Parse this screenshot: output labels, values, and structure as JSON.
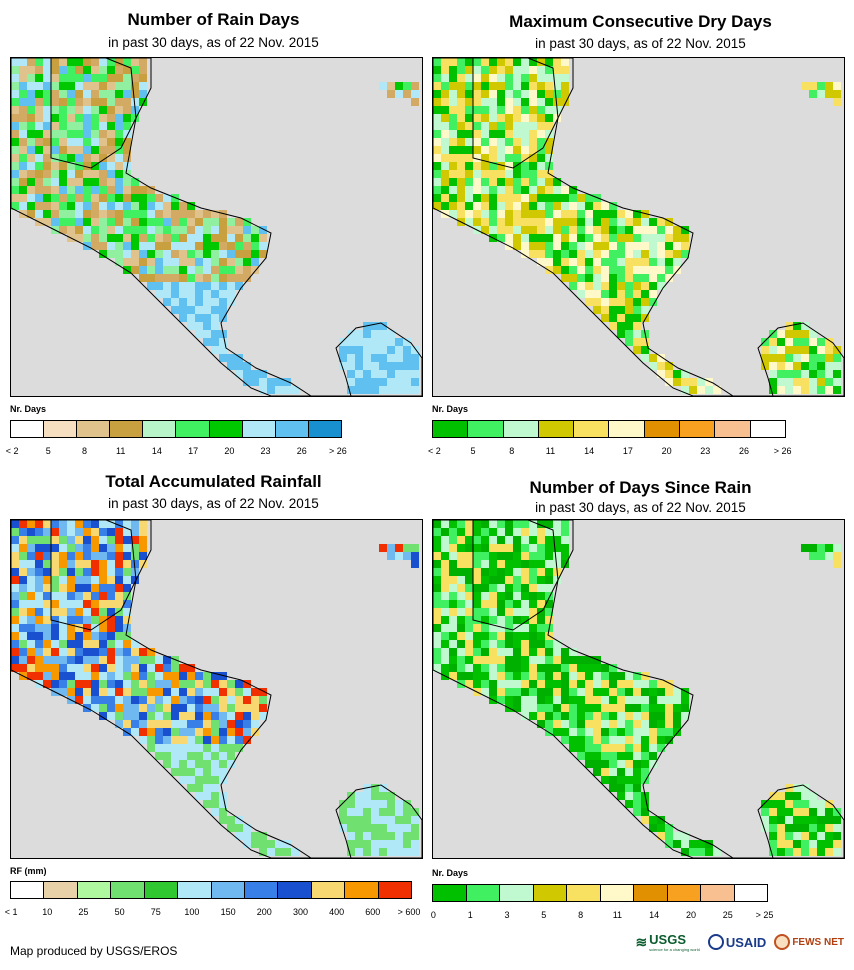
{
  "panels": [
    {
      "title": "Number of Rain Days",
      "subtitle": "in past 30 days, as of 22 Nov. 2015",
      "legend_title": "Nr. Days",
      "legend_colors": [
        "#ffffff",
        "#f5dfc0",
        "#e0c28c",
        "#c8a040",
        "#b8f5c8",
        "#40f060",
        "#00c800",
        "#b0e8f8",
        "#60c0f0",
        "#1890d0"
      ],
      "legend_ticks": [
        "< 2",
        "5",
        "8",
        "11",
        "14",
        "17",
        "20",
        "23",
        "26",
        "> 26"
      ],
      "map_palette": [
        "#d2aa64",
        "#c8a040",
        "#e0c28c",
        "#40f060",
        "#00c800",
        "#90f0a0",
        "#60c0f0",
        "#b0e8f8"
      ],
      "map_icon": "rain-days-map"
    },
    {
      "title": "Maximum Consecutive Dry Days",
      "subtitle": "in past 30 days, as of 22 Nov. 2015",
      "legend_title": "Nr. Days",
      "legend_colors": [
        "#00c000",
        "#40f060",
        "#c0f8d0",
        "#d0c800",
        "#f8e060",
        "#fff8c8",
        "#e09000",
        "#f8a020",
        "#f8c090",
        "#ffffff"
      ],
      "legend_ticks": [
        "< 2",
        "5",
        "8",
        "11",
        "14",
        "17",
        "20",
        "23",
        "26",
        "> 26"
      ],
      "map_palette": [
        "#40f060",
        "#00c000",
        "#c0f8d0",
        "#d0c800",
        "#f8e060",
        "#fff8c8"
      ],
      "map_icon": "dry-days-map"
    },
    {
      "title": "Total Accumulated Rainfall",
      "subtitle": "in past 30 days, as of 22 Nov. 2015",
      "legend_title": "RF (mm)",
      "legend_colors": [
        "#ffffff",
        "#e8d0a8",
        "#b0f8a0",
        "#70e070",
        "#30c830",
        "#b0e8f8",
        "#70b8f0",
        "#3880e8",
        "#1850d0",
        "#f8d870",
        "#f89800",
        "#f03000"
      ],
      "legend_ticks": [
        "< 1",
        "10",
        "25",
        "50",
        "75",
        "100",
        "150",
        "200",
        "300",
        "400",
        "600",
        "> 600"
      ],
      "map_palette": [
        "#3880e8",
        "#70b8f0",
        "#1850d0",
        "#f89800",
        "#f8d870",
        "#f03000",
        "#70e070",
        "#b0e8f8"
      ],
      "map_icon": "rainfall-map"
    },
    {
      "title": "Number of Days Since Rain",
      "subtitle": "in past 30 days, as of 22 Nov. 2015",
      "legend_title": "Nr. Days",
      "legend_colors": [
        "#00c000",
        "#40f060",
        "#c0f8d0",
        "#d0c800",
        "#f8e060",
        "#fff8c8",
        "#e09000",
        "#f8a020",
        "#f8c090",
        "#ffffff"
      ],
      "legend_ticks": [
        "0",
        "1",
        "3",
        "5",
        "8",
        "11",
        "14",
        "20",
        "25",
        "> 25"
      ],
      "map_palette": [
        "#00c000",
        "#40f060",
        "#00b000",
        "#c0f8d0",
        "#f8e060"
      ],
      "map_icon": "days-since-rain-map"
    }
  ],
  "credit": "Map produced by USGS/EROS",
  "logos": {
    "usgs": "USGS",
    "usgs_tagline": "science for a changing world",
    "usaid": "USAID",
    "fewsnet": "FEWS NET"
  }
}
